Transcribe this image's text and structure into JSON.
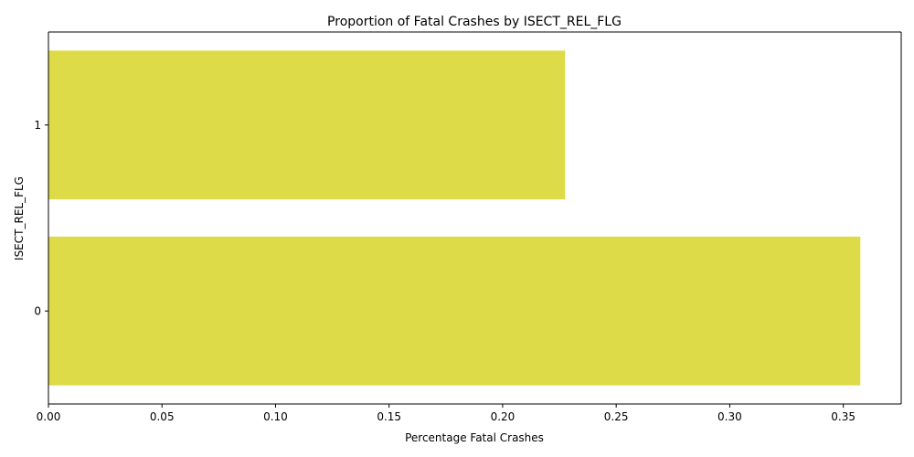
{
  "chart_data": {
    "type": "bar",
    "orientation": "horizontal",
    "title": "Proportion of Fatal Crashes by ISECT_REL_FLG",
    "xlabel": "Percentage Fatal Crashes",
    "ylabel": "ISECT_REL_FLG",
    "categories": [
      "1",
      "0"
    ],
    "values": [
      0.2275,
      0.3575
    ],
    "xlim": [
      0,
      0.3755
    ],
    "xticks": [
      0.0,
      0.05,
      0.1,
      0.15,
      0.2,
      0.25,
      0.3,
      0.35
    ],
    "xtick_labels": [
      "0.00",
      "0.05",
      "0.10",
      "0.15",
      "0.20",
      "0.25",
      "0.30",
      "0.35"
    ],
    "bar_color": "#dddb48",
    "grid": false
  }
}
